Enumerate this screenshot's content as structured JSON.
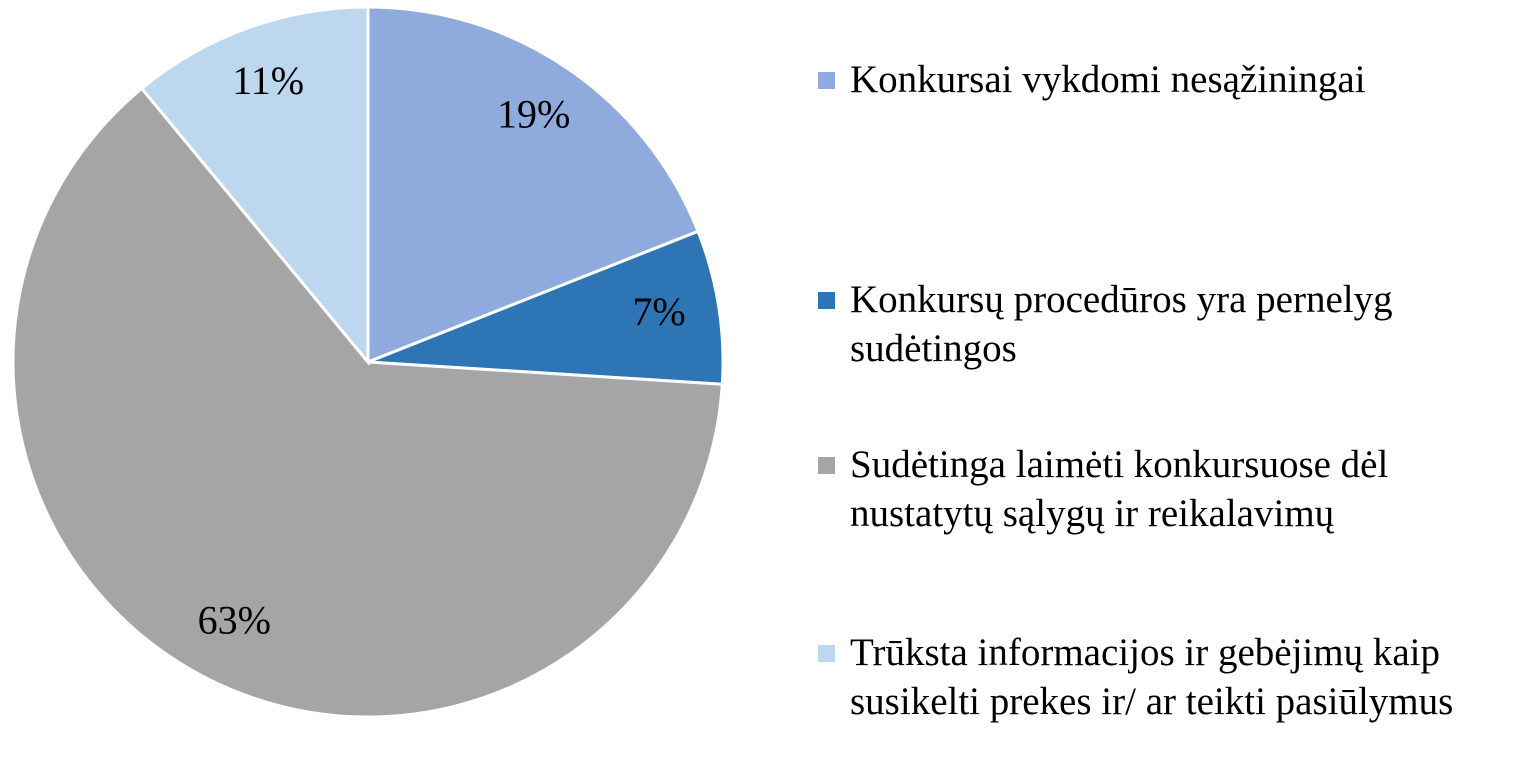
{
  "chart_data": {
    "type": "pie",
    "categories": [
      "Konkursai vykdomi nesąžiningai",
      "Konkursų procedūros yra pernelyg sudėtingos",
      "Sudėtinga laimėti konkursuose dėl nustatytų sąlygų ir reikalavimų",
      "Trūksta informacijos ir gebėjimų kaip susikelti prekes ir/ ar teikti pasiūlymus"
    ],
    "values": [
      19,
      7,
      63,
      11
    ],
    "value_labels": [
      "19%",
      "7%",
      "63%",
      "11%"
    ],
    "colors": [
      "#8faadc",
      "#2e75b6",
      "#a5a5a5",
      "#bdd7ee"
    ],
    "legend": "right"
  }
}
